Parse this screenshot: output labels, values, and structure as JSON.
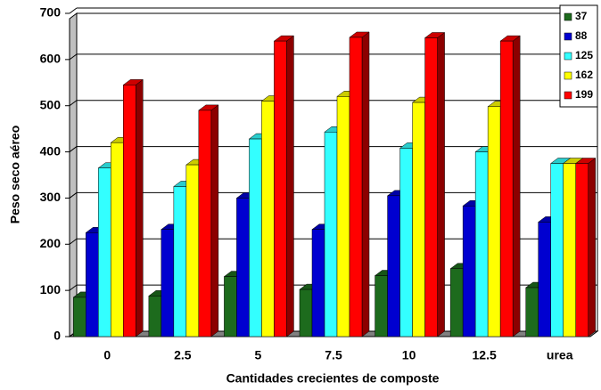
{
  "chart_data": {
    "type": "bar",
    "x_label": "Cantidades crecientes de composte",
    "y_label": "Peso seco aéreo",
    "categories": [
      "0",
      "2.5",
      "5",
      "7.5",
      "10",
      "12.5",
      "urea"
    ],
    "series": [
      {
        "name": "37",
        "color": "#1d6b1d",
        "values": [
          85,
          88,
          130,
          102,
          132,
          147,
          106
        ]
      },
      {
        "name": "88",
        "color": "#0000d0",
        "values": [
          225,
          232,
          300,
          232,
          305,
          283,
          248
        ]
      },
      {
        "name": "125",
        "color": "#33ffff",
        "values": [
          365,
          325,
          428,
          443,
          408,
          400,
          375
        ]
      },
      {
        "name": "162",
        "color": "#ffff00",
        "values": [
          420,
          372,
          510,
          520,
          507,
          498,
          375
        ]
      },
      {
        "name": "199",
        "color": "#ff0000",
        "values": [
          545,
          490,
          640,
          648,
          647,
          640,
          375
        ]
      }
    ],
    "ylim": [
      0,
      700
    ],
    "yticks": [
      0,
      100,
      200,
      300,
      400,
      500,
      600,
      700
    ],
    "grid": true,
    "legend": "top-right"
  }
}
